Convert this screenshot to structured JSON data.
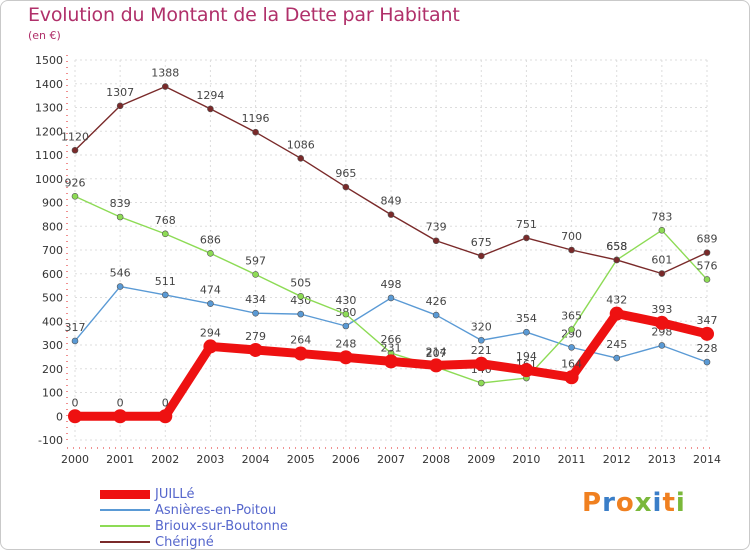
{
  "page": {
    "title": "Evolution du Montant de la Dette par Habitant",
    "subtitle": "(en €)"
  },
  "brand": {
    "text": "Proxiti",
    "colors": [
      "#f08020",
      "#3a7ec8",
      "#f08020",
      "#7ab83a",
      "#3a7ec8",
      "#f08020",
      "#7ab83a"
    ]
  },
  "chart_data": {
    "type": "line",
    "title": "Evolution du Montant de la Dette par Habitant",
    "ylabel": "(en €)",
    "xlabel": "",
    "x": [
      "2000",
      "2001",
      "2002",
      "2003",
      "2004",
      "2005",
      "2006",
      "2007",
      "2008",
      "2009",
      "2010",
      "2011",
      "2012",
      "2013",
      "2014"
    ],
    "y_ticks": [
      -100,
      0,
      100,
      200,
      300,
      400,
      500,
      600,
      700,
      800,
      900,
      1000,
      1100,
      1200,
      1300,
      1400,
      1500
    ],
    "ylim": [
      -100,
      1500
    ],
    "grid": true,
    "legend_position": "bottom-left",
    "series": [
      {
        "name": "JUILLé",
        "color": "#ee1111",
        "emphasis": true,
        "values": [
          0,
          0,
          0,
          294,
          279,
          264,
          248,
          231,
          214,
          221,
          194,
          164,
          432,
          393,
          347
        ]
      },
      {
        "name": "Asnières-en-Poitou",
        "color": "#5a9ad5",
        "emphasis": false,
        "values": [
          317,
          546,
          511,
          474,
          434,
          430,
          380,
          498,
          426,
          320,
          354,
          290,
          245,
          298,
          228
        ]
      },
      {
        "name": "Brioux-sur-Boutonne",
        "color": "#8ddb55",
        "emphasis": false,
        "values": [
          926,
          839,
          768,
          686,
          597,
          505,
          430,
          266,
          207,
          140,
          161,
          365,
          658,
          783,
          576
        ]
      },
      {
        "name": "Chérigné",
        "color": "#7a2a2a",
        "emphasis": false,
        "values": [
          1120,
          1307,
          1388,
          1294,
          1196,
          1086,
          965,
          849,
          739,
          675,
          751,
          700,
          658,
          601,
          689
        ]
      }
    ]
  }
}
